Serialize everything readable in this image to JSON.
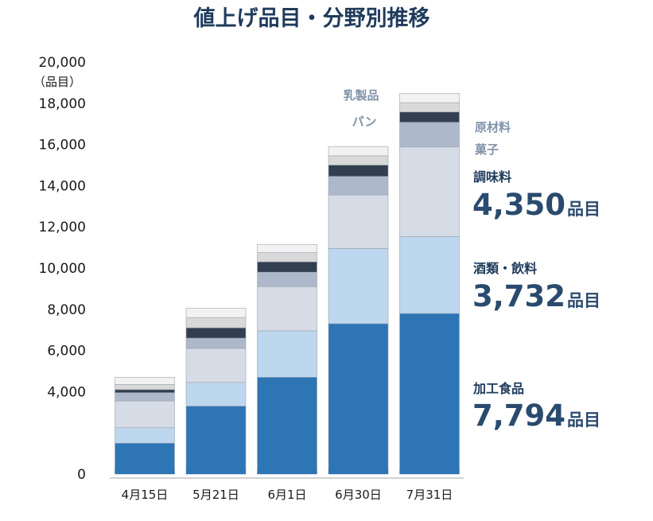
{
  "chart_data": {
    "type": "bar",
    "stacked": true,
    "title": "値上げ品目・分野別推移",
    "ylabel": "（品目）",
    "ylim": [
      0,
      20000
    ],
    "yticks": [
      "0",
      "4,000",
      "6,000",
      "8,000",
      "10,000",
      "12,000",
      "14,000",
      "16,000",
      "18,000",
      "20,000"
    ],
    "ytick_values": [
      0,
      4000,
      6000,
      8000,
      10000,
      12000,
      14000,
      16000,
      18000,
      20000
    ],
    "categories": [
      "4月15日",
      "5月21日",
      "6月1日",
      "6月30日",
      "7月31日"
    ],
    "series": [
      {
        "name": "加工食品",
        "color": "#2e75b6",
        "values": [
          1500,
          3300,
          4700,
          7300,
          7794
        ]
      },
      {
        "name": "酒類・飲料",
        "color": "#bdd7ee",
        "values": [
          750,
          1150,
          2250,
          3650,
          3732
        ]
      },
      {
        "name": "調味料",
        "color": "#d6dce5",
        "values": [
          1300,
          1650,
          2150,
          2600,
          4350
        ]
      },
      {
        "name": "菓子",
        "color": "#adb9ca",
        "values": [
          400,
          500,
          700,
          900,
          1200
        ]
      },
      {
        "name": "原材料",
        "color": "#333f50",
        "values": [
          150,
          500,
          500,
          550,
          500
        ]
      },
      {
        "name": "パン",
        "color": "#d9d9d9",
        "values": [
          250,
          500,
          450,
          450,
          450
        ]
      },
      {
        "name": "乳製品",
        "color": "#f2f2f2",
        "values": [
          350,
          450,
          400,
          450,
          450
        ]
      }
    ],
    "legend": {
      "small": [
        {
          "label": "乳製品"
        },
        {
          "label": "パン"
        },
        {
          "label": "原材料"
        },
        {
          "label": "菓子"
        }
      ],
      "large": [
        {
          "label": "調味料",
          "value": "4,350",
          "suffix": "品目"
        },
        {
          "label": "酒類・飲料",
          "value": "3,732",
          "suffix": "品目"
        },
        {
          "label": "加工食品",
          "value": "7,794",
          "suffix": "品目"
        }
      ]
    }
  }
}
